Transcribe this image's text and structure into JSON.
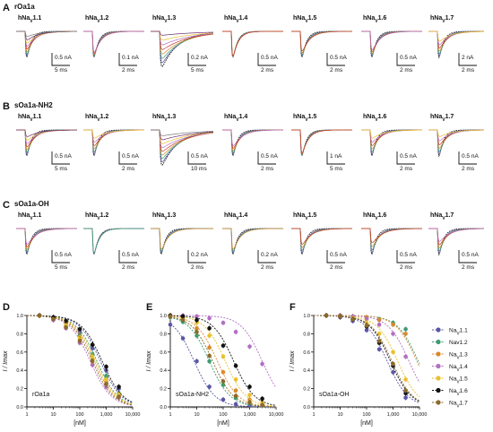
{
  "colors": {
    "Nav1.1": "#5b57a6",
    "Nav1.2": "#3d9d70",
    "Nav1.3": "#d98a2b",
    "Nav1.4": "#b36fc3",
    "Nav1.5": "#e8c02a",
    "Nav1.6": "#111111",
    "Nav1.7": "#8a6a2b",
    "trace_palette": [
      "#111111",
      "#5b57a6",
      "#3d9d70",
      "#d98a2b",
      "#c0392b",
      "#b36fc3",
      "#e8c02a",
      "#6d2b6b",
      "#7a7a7a",
      "#2a64b0"
    ]
  },
  "traces": {
    "rows": [
      {
        "letter": "A",
        "title": "rOa1a",
        "channels": [
          {
            "label": "hNaV1.1",
            "scale_i": "0.5 nA",
            "scale_t": "5 ms",
            "n": 9,
            "block": 0.85
          },
          {
            "label": "hNaV1.2",
            "scale_i": "0.1 nA",
            "scale_t": "2 ms",
            "n": 6,
            "block": 0.3
          },
          {
            "label": "hNaV1.3",
            "scale_i": "0.2 nA",
            "scale_t": "5 ms",
            "n": 8,
            "block": 0.9
          },
          {
            "label": "hNaV1.4",
            "scale_i": "0.5 nA",
            "scale_t": "2 ms",
            "n": 5,
            "block": 0.1
          },
          {
            "label": "hNaV1.5",
            "scale_i": "0.5 nA",
            "scale_t": "2 ms",
            "n": 5,
            "block": 0.35
          },
          {
            "label": "hNaV1.6",
            "scale_i": "0.5 nA",
            "scale_t": "2 ms",
            "n": 6,
            "block": 0.4
          },
          {
            "label": "hNaV1.7",
            "scale_i": "2 nA",
            "scale_t": "2 ms",
            "n": 7,
            "block": 0.7
          }
        ]
      },
      {
        "letter": "B",
        "title": "sOa1a-NH2",
        "channels": [
          {
            "label": "hNaV1.1",
            "scale_i": "0.5 nA",
            "scale_t": "5 ms",
            "n": 8,
            "block": 0.8
          },
          {
            "label": "hNaV1.2",
            "scale_i": "0.5 nA",
            "scale_t": "2 ms",
            "n": 7,
            "block": 0.75
          },
          {
            "label": "hNaV1.3",
            "scale_i": "0.5 nA",
            "scale_t": "10 ms",
            "n": 9,
            "block": 0.85
          },
          {
            "label": "hNaV1.4",
            "scale_i": "0.5 nA",
            "scale_t": "2 ms",
            "n": 6,
            "block": 0.5
          },
          {
            "label": "hNaV1.5",
            "scale_i": "1 nA",
            "scale_t": "5 ms",
            "n": 5,
            "block": 0.2
          },
          {
            "label": "hNaV1.6",
            "scale_i": "0.5 nA",
            "scale_t": "2 ms",
            "n": 7,
            "block": 0.75
          },
          {
            "label": "hNaV1.7",
            "scale_i": "0.5 nA",
            "scale_t": "2 ms",
            "n": 7,
            "block": 0.8
          }
        ]
      },
      {
        "letter": "C",
        "title": "sOa1a-OH",
        "channels": [
          {
            "label": "hNaV1.1",
            "scale_i": "0.5 nA",
            "scale_t": "5 ms",
            "n": 6,
            "block": 0.5
          },
          {
            "label": "hNaV1.2",
            "scale_i": "0.5 nA",
            "scale_t": "2 ms",
            "n": 3,
            "block": 0.1
          },
          {
            "label": "hNaV1.3",
            "scale_i": "0.2 nA",
            "scale_t": "2 ms",
            "n": 4,
            "block": 0.3
          },
          {
            "label": "hNaV1.4",
            "scale_i": "0.2 nA",
            "scale_t": "2 ms",
            "n": 4,
            "block": 0.3
          },
          {
            "label": "hNaV1.5",
            "scale_i": "0.5 nA",
            "scale_t": "2 ms",
            "n": 5,
            "block": 0.5
          },
          {
            "label": "hNaV1.6",
            "scale_i": "0.5 nA",
            "scale_t": "2 ms",
            "n": 5,
            "block": 0.55
          },
          {
            "label": "hNaV1.7",
            "scale_i": "0.5 nA",
            "scale_t": "2 ms",
            "n": 6,
            "block": 0.6
          }
        ]
      }
    ]
  },
  "chart_data": [
    {
      "letter": "D",
      "type": "scatter",
      "title": "rOa1a",
      "xlabel": "[nM]",
      "ylabel": "I / Imax",
      "xscale": "log",
      "xlim": [
        1,
        10000
      ],
      "ylim": [
        0,
        1
      ],
      "xticks": [
        "1",
        "10",
        "100",
        "1,000",
        "10,000"
      ],
      "yticks": [
        "0.0",
        "0.2",
        "0.4",
        "0.6",
        "0.8",
        "1.0"
      ],
      "x": [
        3,
        10,
        30,
        100,
        300,
        1000,
        3000
      ],
      "series": [
        {
          "name": "NaV1.1",
          "ic50": 600,
          "values": [
            1.0,
            0.98,
            0.92,
            0.82,
            0.64,
            0.4,
            0.2
          ]
        },
        {
          "name": "Nav1.2",
          "ic50": 450,
          "values": [
            1.0,
            0.97,
            0.9,
            0.78,
            0.58,
            0.34,
            0.15
          ]
        },
        {
          "name": "NaV1.3",
          "ic50": 350,
          "values": [
            1.0,
            0.96,
            0.88,
            0.74,
            0.52,
            0.28,
            0.12
          ]
        },
        {
          "name": "NaV1.4",
          "ic50": 250,
          "values": [
            1.0,
            0.95,
            0.86,
            0.7,
            0.46,
            0.22,
            0.1
          ]
        },
        {
          "name": "NaV1.5",
          "ic50": 400,
          "values": [
            1.0,
            0.97,
            0.9,
            0.76,
            0.55,
            0.3,
            0.14
          ]
        },
        {
          "name": "NaV1.6",
          "ic50": 700,
          "values": [
            1.0,
            0.98,
            0.94,
            0.85,
            0.68,
            0.44,
            0.22
          ]
        },
        {
          "name": "NaV1.7",
          "ic50": 300,
          "values": [
            1.0,
            0.96,
            0.87,
            0.72,
            0.5,
            0.25,
            0.11
          ]
        }
      ]
    },
    {
      "letter": "E",
      "type": "scatter",
      "title": "sOa1a-NH2",
      "xlabel": "[nM]",
      "ylabel": "I / Imax",
      "xscale": "log",
      "xlim": [
        1,
        10000
      ],
      "ylim": [
        0,
        1
      ],
      "xticks": [
        "1",
        "10",
        "100",
        "1,000",
        "10,000"
      ],
      "yticks": [
        "0.0",
        "0.2",
        "0.4",
        "0.6",
        "0.8",
        "1.0"
      ],
      "x": [
        1,
        3,
        10,
        30,
        100,
        300,
        1000,
        3000
      ],
      "series": [
        {
          "name": "NaV1.1",
          "ic50": 8,
          "values": [
            0.9,
            0.75,
            0.5,
            0.22,
            0.08,
            0.03,
            0.02,
            0.02
          ]
        },
        {
          "name": "Nav1.2",
          "ic50": 30,
          "values": [
            0.98,
            0.93,
            0.78,
            0.5,
            0.24,
            0.1,
            0.04,
            0.02
          ]
        },
        {
          "name": "NaV1.3",
          "ic50": 60,
          "values": [
            0.99,
            0.96,
            0.86,
            0.65,
            0.38,
            0.18,
            0.08,
            0.03
          ]
        },
        {
          "name": "NaV1.4",
          "ic50": 3000,
          "values": [
            1.0,
            1.0,
            0.99,
            0.97,
            0.92,
            0.82,
            0.66,
            0.47
          ]
        },
        {
          "name": "NaV1.5",
          "ic50": 120,
          "values": [
            1.0,
            0.98,
            0.92,
            0.78,
            0.55,
            0.3,
            0.13,
            0.05
          ]
        },
        {
          "name": "NaV1.6",
          "ic50": 250,
          "values": [
            1.0,
            0.99,
            0.95,
            0.86,
            0.67,
            0.45,
            0.22,
            0.09
          ]
        },
        {
          "name": "NaV1.7",
          "ic50": 40,
          "values": [
            0.99,
            0.95,
            0.82,
            0.56,
            0.28,
            0.12,
            0.05,
            0.02
          ]
        }
      ]
    },
    {
      "letter": "F",
      "type": "scatter",
      "title": "sOa1a-OH",
      "xlabel": "[nM]",
      "ylabel": "I / Imax",
      "xscale": "log",
      "xlim": [
        1,
        10000
      ],
      "ylim": [
        0,
        1
      ],
      "xticks": [
        "1",
        "10",
        "100",
        "1,000",
        "10,000"
      ],
      "yticks": [
        "0.0",
        "0.2",
        "0.4",
        "0.6",
        "0.8",
        "1.0"
      ],
      "x": [
        3,
        10,
        30,
        100,
        300,
        1000,
        3000
      ],
      "series": [
        {
          "name": "NaV1.1",
          "ic50": 600,
          "values": [
            1.0,
            0.98,
            0.94,
            0.84,
            0.63,
            0.38,
            0.1
          ]
        },
        {
          "name": "Nav1.2",
          "ic50": 9000,
          "values": [
            1.0,
            1.0,
            0.99,
            0.98,
            0.96,
            0.92,
            0.85
          ]
        },
        {
          "name": "NaV1.3",
          "ic50": 8000,
          "values": [
            1.0,
            1.0,
            0.99,
            0.98,
            0.95,
            0.9,
            0.8
          ]
        },
        {
          "name": "NaV1.4",
          "ic50": 4000,
          "values": [
            1.0,
            1.0,
            0.99,
            0.96,
            0.9,
            0.8,
            0.55
          ]
        },
        {
          "name": "NaV1.5",
          "ic50": 1500,
          "values": [
            1.0,
            0.99,
            0.97,
            0.92,
            0.8,
            0.6,
            0.3
          ]
        },
        {
          "name": "NaV1.6",
          "ic50": 800,
          "values": [
            1.0,
            0.99,
            0.96,
            0.88,
            0.7,
            0.45,
            0.15
          ]
        },
        {
          "name": "NaV1.7",
          "ic50": 900,
          "values": [
            1.0,
            0.99,
            0.96,
            0.89,
            0.72,
            0.47,
            0.18
          ]
        }
      ]
    }
  ],
  "legend": {
    "items": [
      {
        "label": "NaV1.1",
        "key": "Nav1.1"
      },
      {
        "label": "Nav1.2",
        "key": "Nav1.2"
      },
      {
        "label": "NaV1.3",
        "key": "Nav1.3"
      },
      {
        "label": "NaV1.4",
        "key": "Nav1.4"
      },
      {
        "label": "NaV1.5",
        "key": "Nav1.5"
      },
      {
        "label": "NaV1.6",
        "key": "Nav1.6"
      },
      {
        "label": "NaV1.7",
        "key": "Nav1.7"
      }
    ]
  }
}
